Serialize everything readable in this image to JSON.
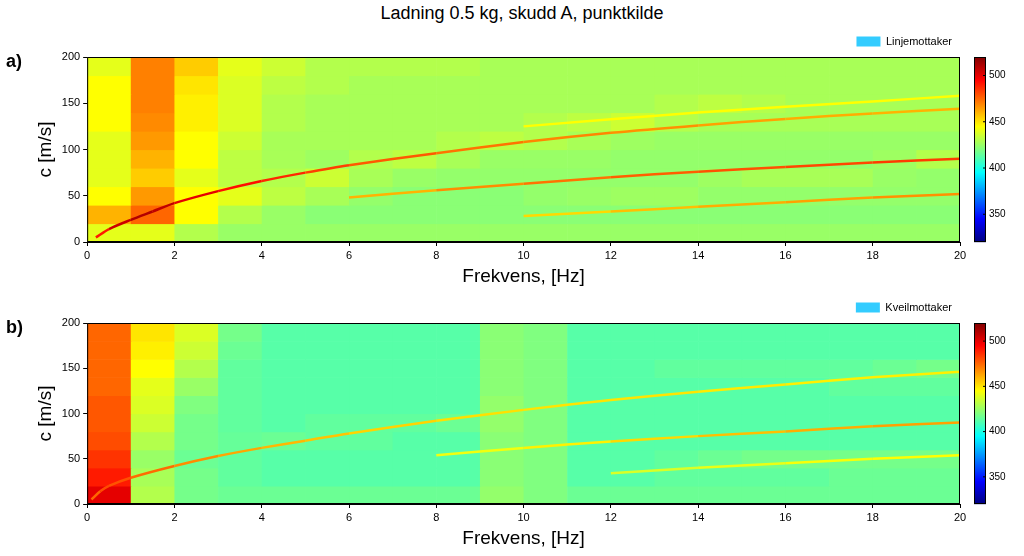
{
  "title": "Ladning 0.5 kg, skudd A, punktkilde",
  "chart_data": [
    {
      "type": "heatmap",
      "panel": "a)",
      "xlabel": "Frekvens, [Hz]",
      "ylabel": "c [m/s]",
      "xlim": [
        0,
        20
      ],
      "xticks": [
        0,
        2,
        4,
        6,
        8,
        10,
        12,
        14,
        16,
        18,
        20
      ],
      "ylim": [
        0,
        200
      ],
      "yticks": [
        0,
        50,
        100,
        150,
        200
      ],
      "grid": false,
      "legend": "top right",
      "heatmap": {
        "name": "Linjemottaker",
        "color": "#33ccff",
        "x_edges": [
          0,
          1,
          2,
          3,
          4,
          5,
          6,
          7,
          8,
          9,
          10,
          11,
          12,
          13,
          14,
          15,
          16,
          17,
          18,
          19,
          20
        ],
        "y_edges": [
          0,
          20,
          40,
          60,
          80,
          100,
          120,
          140,
          160,
          180,
          200
        ],
        "cells": [
          [
            440,
            440,
            430,
            425,
            425,
            425,
            425,
            425,
            425,
            425,
            425,
            425,
            425,
            425,
            425,
            425,
            425,
            425,
            425,
            425
          ],
          [
            460,
            475,
            445,
            430,
            425,
            422,
            422,
            422,
            422,
            422,
            422,
            422,
            422,
            422,
            422,
            422,
            422,
            422,
            422,
            422
          ],
          [
            445,
            465,
            445,
            440,
            432,
            428,
            424,
            422,
            422,
            422,
            424,
            425,
            426,
            426,
            424,
            424,
            424,
            424,
            424,
            424
          ],
          [
            440,
            455,
            440,
            432,
            430,
            435,
            428,
            425,
            424,
            424,
            424,
            424,
            424,
            424,
            426,
            428,
            428,
            428,
            425,
            424
          ],
          [
            440,
            460,
            445,
            432,
            428,
            426,
            430,
            432,
            428,
            425,
            425,
            425,
            424,
            424,
            424,
            424,
            424,
            424,
            426,
            430
          ],
          [
            440,
            465,
            445,
            435,
            428,
            428,
            428,
            428,
            430,
            432,
            430,
            428,
            426,
            425,
            425,
            425,
            425,
            425,
            425,
            425
          ],
          [
            445,
            468,
            448,
            438,
            430,
            428,
            428,
            428,
            428,
            428,
            430,
            432,
            435,
            430,
            428,
            428,
            428,
            428,
            428,
            428
          ],
          [
            445,
            470,
            448,
            438,
            430,
            428,
            428,
            428,
            428,
            428,
            428,
            428,
            428,
            430,
            432,
            430,
            428,
            428,
            428,
            428
          ],
          [
            445,
            470,
            450,
            438,
            432,
            430,
            428,
            428,
            428,
            428,
            428,
            428,
            428,
            428,
            428,
            428,
            428,
            428,
            428,
            428
          ],
          [
            440,
            470,
            455,
            440,
            435,
            430,
            430,
            430,
            430,
            428,
            428,
            428,
            428,
            428,
            428,
            428,
            428,
            428,
            428,
            428
          ]
        ]
      },
      "colorbar": {
        "range": [
          320,
          520
        ],
        "ticks": [
          350,
          400,
          450,
          500
        ]
      },
      "series": [
        {
          "line_style": "solid",
          "x": [
            0.2,
            0.5,
            1,
            1.5,
            2,
            3,
            4,
            5,
            6,
            8,
            10,
            12,
            14,
            16,
            18,
            20
          ],
          "values": [
            5,
            14,
            24,
            33,
            42,
            55,
            66,
            75,
            83,
            96,
            108,
            118,
            126,
            133,
            139,
            144
          ],
          "z": [
            480,
            500,
            510,
            510,
            505,
            495,
            490,
            485,
            480,
            475,
            470,
            468,
            465,
            462,
            460,
            460
          ]
        },
        {
          "line_style": "solid",
          "x": [
            6,
            8,
            10,
            12,
            14,
            16,
            18,
            20
          ],
          "values": [
            48,
            56,
            63,
            70,
            76,
            81,
            86,
            90
          ],
          "z": [
            455,
            465,
            470,
            475,
            478,
            480,
            482,
            485
          ]
        },
        {
          "line_style": "solid",
          "x": [
            10,
            12,
            14,
            16,
            18,
            20
          ],
          "values": [
            28,
            33,
            38,
            43,
            48,
            52
          ],
          "z": [
            450,
            455,
            460,
            462,
            465,
            468
          ]
        },
        {
          "line_style": "solid",
          "x": [
            10,
            14,
            18,
            20
          ],
          "values": [
            125,
            140,
            152,
            158
          ],
          "z": [
            445,
            445,
            445,
            445
          ]
        }
      ]
    },
    {
      "type": "heatmap",
      "panel": "b)",
      "xlabel": "Frekvens, [Hz]",
      "ylabel": "c [m/s]",
      "xlim": [
        0,
        20
      ],
      "xticks": [
        0,
        2,
        4,
        6,
        8,
        10,
        12,
        14,
        16,
        18,
        20
      ],
      "ylim": [
        0,
        200
      ],
      "yticks": [
        0,
        50,
        100,
        150,
        200
      ],
      "grid": false,
      "legend": "top right",
      "heatmap": {
        "name": "Kveilmottaker",
        "color": "#33ccff",
        "x_edges": [
          0,
          1,
          2,
          3,
          4,
          5,
          6,
          7,
          8,
          9,
          10,
          11,
          12,
          13,
          14,
          15,
          16,
          17,
          18,
          19,
          20
        ],
        "y_edges": [
          0,
          20,
          40,
          60,
          80,
          100,
          120,
          140,
          160,
          180,
          200
        ],
        "cells": [
          [
            500,
            430,
            418,
            416,
            416,
            416,
            416,
            416,
            416,
            424,
            420,
            416,
            416,
            416,
            416,
            416,
            416,
            416,
            416,
            416
          ],
          [
            490,
            428,
            418,
            414,
            412,
            412,
            412,
            412,
            412,
            422,
            420,
            412,
            412,
            414,
            414,
            414,
            414,
            416,
            416,
            416
          ],
          [
            485,
            425,
            416,
            414,
            412,
            412,
            412,
            412,
            412,
            422,
            420,
            412,
            412,
            414,
            416,
            418,
            418,
            418,
            418,
            418
          ],
          [
            480,
            430,
            418,
            415,
            416,
            414,
            414,
            412,
            412,
            422,
            420,
            412,
            412,
            412,
            412,
            412,
            412,
            412,
            412,
            412
          ],
          [
            478,
            435,
            418,
            414,
            412,
            414,
            414,
            414,
            416,
            424,
            420,
            412,
            412,
            412,
            412,
            412,
            412,
            412,
            412,
            412
          ],
          [
            478,
            438,
            420,
            414,
            412,
            412,
            412,
            412,
            412,
            424,
            420,
            412,
            412,
            412,
            412,
            412,
            412,
            412,
            412,
            412
          ],
          [
            475,
            440,
            425,
            414,
            412,
            412,
            412,
            412,
            412,
            422,
            420,
            412,
            412,
            412,
            412,
            412,
            412,
            414,
            414,
            414
          ],
          [
            475,
            445,
            430,
            414,
            412,
            412,
            412,
            412,
            412,
            422,
            420,
            412,
            412,
            414,
            414,
            414,
            414,
            414,
            416,
            418
          ],
          [
            475,
            448,
            435,
            416,
            412,
            412,
            412,
            412,
            412,
            422,
            420,
            412,
            412,
            412,
            412,
            412,
            412,
            412,
            412,
            412
          ],
          [
            475,
            450,
            438,
            418,
            412,
            412,
            412,
            412,
            412,
            422,
            420,
            412,
            412,
            412,
            412,
            412,
            412,
            412,
            412,
            412
          ]
        ]
      },
      "colorbar": {
        "range": [
          320,
          520
        ],
        "ticks": [
          350,
          400,
          450,
          500
        ]
      },
      "series": [
        {
          "line_style": "solid",
          "x": [
            0.1,
            0.3,
            0.5,
            1,
            2,
            3,
            4,
            5,
            6,
            8,
            10,
            12,
            14,
            16,
            18,
            20
          ],
          "values": [
            5,
            14,
            20,
            29,
            42,
            53,
            62,
            70,
            78,
            92,
            104,
            115,
            124,
            132,
            140,
            146
          ],
          "z": [
            470,
            480,
            480,
            478,
            470,
            465,
            460,
            458,
            455,
            452,
            450,
            450,
            450,
            448,
            448,
            448
          ]
        },
        {
          "line_style": "solid",
          "x": [
            8,
            10,
            12,
            14,
            16,
            18,
            20
          ],
          "values": [
            54,
            62,
            69,
            75,
            80,
            86,
            90
          ],
          "z": [
            440,
            445,
            450,
            455,
            460,
            462,
            465
          ]
        },
        {
          "line_style": "solid",
          "x": [
            12,
            14,
            16,
            18,
            20
          ],
          "values": [
            34,
            40,
            45,
            50,
            54
          ],
          "z": [
            435,
            440,
            442,
            445,
            445
          ]
        }
      ]
    }
  ]
}
